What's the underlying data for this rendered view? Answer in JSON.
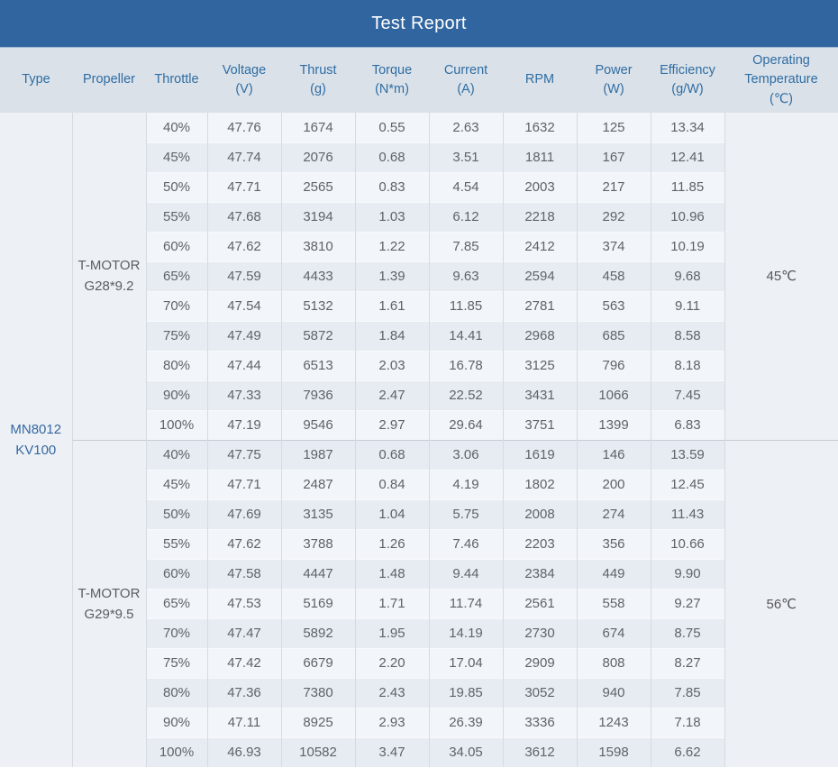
{
  "title": "Test Report",
  "columns": [
    {
      "key": "type",
      "label": "Type"
    },
    {
      "key": "propeller",
      "label": "Propeller"
    },
    {
      "key": "throttle",
      "label": "Throttle"
    },
    {
      "key": "voltage",
      "label": "Voltage\n(V)"
    },
    {
      "key": "thrust",
      "label": "Thrust\n(g)"
    },
    {
      "key": "torque",
      "label": "Torque\n(N*m)"
    },
    {
      "key": "current",
      "label": "Current\n(A)"
    },
    {
      "key": "rpm",
      "label": "RPM"
    },
    {
      "key": "power",
      "label": "Power\n(W)"
    },
    {
      "key": "efficiency",
      "label": "Efficiency\n(g/W)"
    },
    {
      "key": "operating-temperature",
      "label": "Operating\nTemperature\n(℃)"
    }
  ],
  "type": "MN8012\nKV100",
  "groups": [
    {
      "propeller": "T-MOTOR\nG28*9.2",
      "operating_temperature": "45℃",
      "rows": [
        {
          "throttle": "40%",
          "voltage": "47.76",
          "thrust": "1674",
          "torque": "0.55",
          "current": "2.63",
          "rpm": "1632",
          "power": "125",
          "efficiency": "13.34"
        },
        {
          "throttle": "45%",
          "voltage": "47.74",
          "thrust": "2076",
          "torque": "0.68",
          "current": "3.51",
          "rpm": "1811",
          "power": "167",
          "efficiency": "12.41"
        },
        {
          "throttle": "50%",
          "voltage": "47.71",
          "thrust": "2565",
          "torque": "0.83",
          "current": "4.54",
          "rpm": "2003",
          "power": "217",
          "efficiency": "11.85"
        },
        {
          "throttle": "55%",
          "voltage": "47.68",
          "thrust": "3194",
          "torque": "1.03",
          "current": "6.12",
          "rpm": "2218",
          "power": "292",
          "efficiency": "10.96"
        },
        {
          "throttle": "60%",
          "voltage": "47.62",
          "thrust": "3810",
          "torque": "1.22",
          "current": "7.85",
          "rpm": "2412",
          "power": "374",
          "efficiency": "10.19"
        },
        {
          "throttle": "65%",
          "voltage": "47.59",
          "thrust": "4433",
          "torque": "1.39",
          "current": "9.63",
          "rpm": "2594",
          "power": "458",
          "efficiency": "9.68"
        },
        {
          "throttle": "70%",
          "voltage": "47.54",
          "thrust": "5132",
          "torque": "1.61",
          "current": "11.85",
          "rpm": "2781",
          "power": "563",
          "efficiency": "9.11"
        },
        {
          "throttle": "75%",
          "voltage": "47.49",
          "thrust": "5872",
          "torque": "1.84",
          "current": "14.41",
          "rpm": "2968",
          "power": "685",
          "efficiency": "8.58"
        },
        {
          "throttle": "80%",
          "voltage": "47.44",
          "thrust": "6513",
          "torque": "2.03",
          "current": "16.78",
          "rpm": "3125",
          "power": "796",
          "efficiency": "8.18"
        },
        {
          "throttle": "90%",
          "voltage": "47.33",
          "thrust": "7936",
          "torque": "2.47",
          "current": "22.52",
          "rpm": "3431",
          "power": "1066",
          "efficiency": "7.45"
        },
        {
          "throttle": "100%",
          "voltage": "47.19",
          "thrust": "9546",
          "torque": "2.97",
          "current": "29.64",
          "rpm": "3751",
          "power": "1399",
          "efficiency": "6.83"
        }
      ]
    },
    {
      "propeller": "T-MOTOR\nG29*9.5",
      "operating_temperature": "56℃",
      "rows": [
        {
          "throttle": "40%",
          "voltage": "47.75",
          "thrust": "1987",
          "torque": "0.68",
          "current": "3.06",
          "rpm": "1619",
          "power": "146",
          "efficiency": "13.59"
        },
        {
          "throttle": "45%",
          "voltage": "47.71",
          "thrust": "2487",
          "torque": "0.84",
          "current": "4.19",
          "rpm": "1802",
          "power": "200",
          "efficiency": "12.45"
        },
        {
          "throttle": "50%",
          "voltage": "47.69",
          "thrust": "3135",
          "torque": "1.04",
          "current": "5.75",
          "rpm": "2008",
          "power": "274",
          "efficiency": "11.43"
        },
        {
          "throttle": "55%",
          "voltage": "47.62",
          "thrust": "3788",
          "torque": "1.26",
          "current": "7.46",
          "rpm": "2203",
          "power": "356",
          "efficiency": "10.66"
        },
        {
          "throttle": "60%",
          "voltage": "47.58",
          "thrust": "4447",
          "torque": "1.48",
          "current": "9.44",
          "rpm": "2384",
          "power": "449",
          "efficiency": "9.90"
        },
        {
          "throttle": "65%",
          "voltage": "47.53",
          "thrust": "5169",
          "torque": "1.71",
          "current": "11.74",
          "rpm": "2561",
          "power": "558",
          "efficiency": "9.27"
        },
        {
          "throttle": "70%",
          "voltage": "47.47",
          "thrust": "5892",
          "torque": "1.95",
          "current": "14.19",
          "rpm": "2730",
          "power": "674",
          "efficiency": "8.75"
        },
        {
          "throttle": "75%",
          "voltage": "47.42",
          "thrust": "6679",
          "torque": "2.20",
          "current": "17.04",
          "rpm": "2909",
          "power": "808",
          "efficiency": "8.27"
        },
        {
          "throttle": "80%",
          "voltage": "47.36",
          "thrust": "7380",
          "torque": "2.43",
          "current": "19.85",
          "rpm": "3052",
          "power": "940",
          "efficiency": "7.85"
        },
        {
          "throttle": "90%",
          "voltage": "47.11",
          "thrust": "8925",
          "torque": "2.93",
          "current": "26.39",
          "rpm": "3336",
          "power": "1243",
          "efficiency": "7.18"
        },
        {
          "throttle": "100%",
          "voltage": "46.93",
          "thrust": "10582",
          "torque": "3.47",
          "current": "34.05",
          "rpm": "3612",
          "power": "1598",
          "efficiency": "6.62"
        }
      ]
    }
  ],
  "colors": {
    "title_bar_bg": "#30659f",
    "title_text": "#ffffff",
    "header_bg": "#dbe1e8",
    "header_text": "#2e6da4",
    "row_light": "#f2f5f9",
    "row_dark": "#e7ecf3",
    "side_column_bg": "#edf0f5",
    "type_text": "#3568a1",
    "data_text": "#5f6368"
  }
}
